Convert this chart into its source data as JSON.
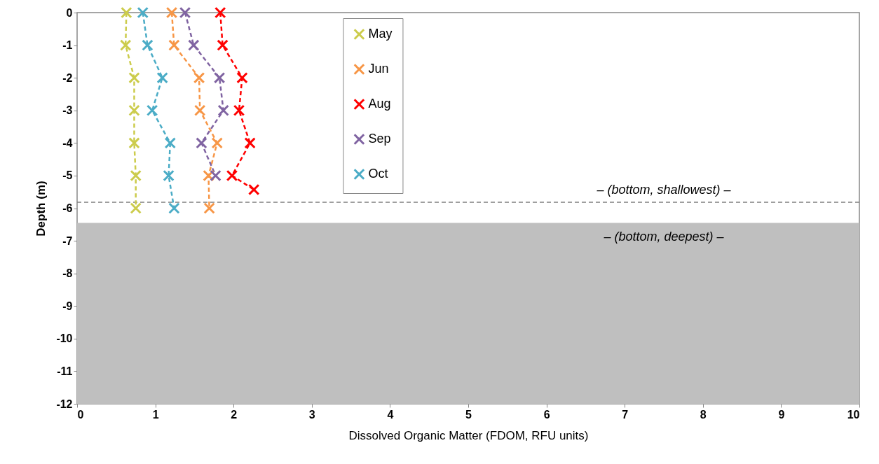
{
  "chart_data": {
    "type": "line",
    "xlabel": "Dissolved Organic Matter (FDOM, RFU units)",
    "ylabel": "Depth (m)",
    "xlim": [
      0,
      10
    ],
    "xticks": [
      0,
      1,
      2,
      3,
      4,
      5,
      6,
      7,
      8,
      9,
      10
    ],
    "ylim": [
      -12,
      0
    ],
    "yticks": [
      0,
      -1,
      -2,
      -3,
      -4,
      -5,
      -6,
      -7,
      -8,
      -9,
      -10,
      -11,
      -12
    ],
    "grid": false,
    "legend": "top",
    "marker": "cross",
    "line_style": "dashed",
    "series": [
      {
        "name": "May",
        "color": "#cccc4c",
        "x": [
          0.63,
          0.62,
          0.73,
          0.73,
          0.73,
          0.75,
          0.75
        ],
        "values": [
          0,
          -1,
          -2,
          -3,
          -4,
          -5,
          -6
        ]
      },
      {
        "name": "Jun",
        "color": "#f79646",
        "x": [
          1.21,
          1.24,
          1.56,
          1.57,
          1.79,
          1.68,
          1.69
        ],
        "values": [
          0,
          -1,
          -2,
          -3,
          -4,
          -5,
          -6
        ]
      },
      {
        "name": "Aug",
        "color": "#ff0000",
        "x": [
          1.83,
          1.86,
          2.11,
          2.07,
          2.21,
          1.98,
          2.26
        ],
        "values": [
          0,
          -1,
          -2,
          -3,
          -4,
          -5,
          -5.43
        ]
      },
      {
        "name": "Sep",
        "color": "#8064a2",
        "x": [
          1.38,
          1.49,
          1.82,
          1.87,
          1.59,
          1.77
        ],
        "values": [
          0,
          -1,
          -2,
          -3,
          -4,
          -5
        ]
      },
      {
        "name": "Oct",
        "color": "#4bacc6",
        "x": [
          0.84,
          0.9,
          1.09,
          0.96,
          1.19,
          1.17,
          1.24
        ],
        "values": [
          0,
          -1,
          -2,
          -3,
          -4,
          -5,
          -6
        ]
      }
    ],
    "ref_lines": [
      {
        "axis": "y",
        "value": -5.82,
        "label": "– (bottom, shallowest) –",
        "color": "#808080",
        "line_style": "dashed"
      }
    ],
    "bands": [
      {
        "axis": "y",
        "from": -6.45,
        "to": -12,
        "label": "– (bottom, deepest) –",
        "color": "#bfbfbf"
      }
    ]
  }
}
